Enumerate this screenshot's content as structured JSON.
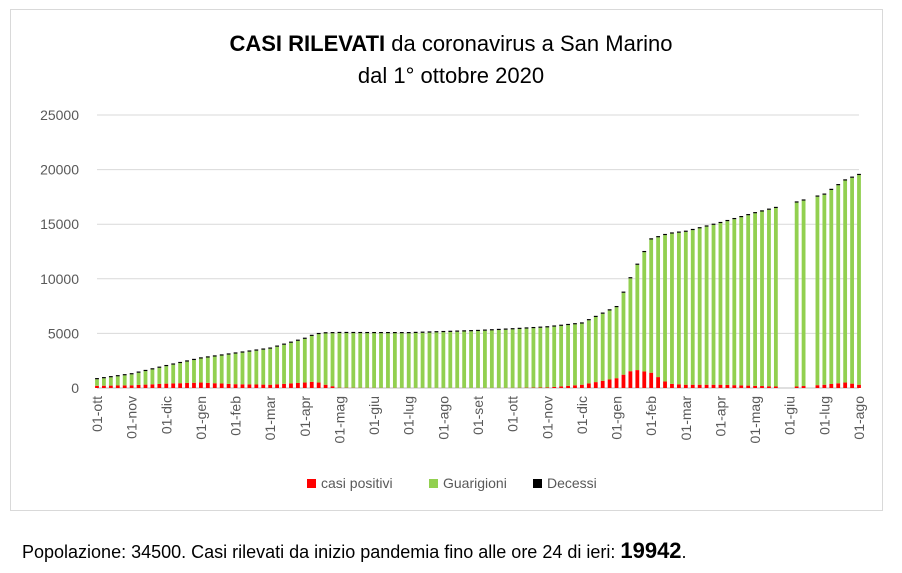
{
  "footer": {
    "prefix": "Popolazione: 34500. Casi rilevati da inizio pandemia fino alle ore 24 di ieri: ",
    "total": "19942",
    "suffix": "."
  },
  "colors": {
    "positivi": "#ff0000",
    "guarigioni": "#92d050",
    "decessi": "#000000",
    "gridline": "#d9d9d9",
    "text": "#595959"
  },
  "chart_data": {
    "type": "bar",
    "stacked": true,
    "title_bold": "CASI RILEVATI",
    "title_rest": " da coronavirus a San Marino",
    "subtitle": "dal 1° ottobre 2020",
    "ylim": [
      0,
      25000
    ],
    "y_ticks": [
      "25000",
      "20000",
      "15000",
      "10000",
      "5000",
      "0"
    ],
    "grid": true,
    "legend_position": "bottom",
    "x_tick_labels": [
      "01-ott",
      "01-nov",
      "01-dic",
      "01-gen",
      "01-feb",
      "01-mar",
      "01-apr",
      "01-mag",
      "01-giu",
      "01-lug",
      "01-ago",
      "01-set",
      "01-ott",
      "01-nov",
      "01-dic",
      "01-gen",
      "01-feb",
      "01-mar",
      "01-apr",
      "01-mag",
      "01-giu",
      "01-lug",
      "01-ago"
    ],
    "series": [
      {
        "name": "casi positivi",
        "color": "#ff0000",
        "points": [
          [
            0,
            200
          ],
          [
            1,
            250
          ],
          [
            2,
            400
          ],
          [
            3,
            500
          ],
          [
            4,
            350
          ],
          [
            5,
            300
          ],
          [
            6,
            500
          ],
          [
            6.3,
            600
          ],
          [
            6.6,
            300
          ],
          [
            7,
            30
          ],
          [
            8,
            20
          ],
          [
            9,
            15
          ],
          [
            10,
            15
          ],
          [
            11,
            15
          ],
          [
            12,
            20
          ],
          [
            13,
            50
          ],
          [
            14,
            300
          ],
          [
            15,
            900
          ],
          [
            15.5,
            1700
          ],
          [
            16,
            1400
          ],
          [
            16.5,
            400
          ],
          [
            17,
            300
          ],
          [
            18,
            300
          ],
          [
            19,
            200
          ],
          [
            20,
            100
          ],
          [
            21,
            300
          ],
          [
            21.6,
            500
          ],
          [
            22,
            300
          ]
        ]
      },
      {
        "name": "Guarigioni",
        "color": "#92d050",
        "points": [
          [
            0,
            600
          ],
          [
            1,
            1000
          ],
          [
            2,
            1600
          ],
          [
            3,
            2200
          ],
          [
            4,
            2800
          ],
          [
            5,
            3300
          ],
          [
            6,
            4000
          ],
          [
            6.3,
            4300
          ],
          [
            6.6,
            4700
          ],
          [
            7,
            5000
          ],
          [
            8,
            5000
          ],
          [
            9,
            5000
          ],
          [
            10,
            5100
          ],
          [
            11,
            5200
          ],
          [
            12,
            5350
          ],
          [
            13,
            5500
          ],
          [
            14,
            5600
          ],
          [
            15,
            6500
          ],
          [
            15.5,
            9000
          ],
          [
            16,
            12200
          ],
          [
            16.5,
            13700
          ],
          [
            17,
            14000
          ],
          [
            18,
            14800
          ],
          [
            19,
            15800
          ],
          [
            20,
            16700
          ],
          [
            21,
            17400
          ],
          [
            21.6,
            18500
          ],
          [
            22,
            19200
          ]
        ]
      },
      {
        "name": "Decessi",
        "color": "#000000",
        "points": [
          [
            0,
            20
          ],
          [
            1,
            20
          ],
          [
            2,
            25
          ],
          [
            3,
            30
          ],
          [
            4,
            35
          ],
          [
            5,
            40
          ],
          [
            6,
            50
          ],
          [
            7,
            55
          ],
          [
            8,
            55
          ],
          [
            9,
            55
          ],
          [
            10,
            55
          ],
          [
            11,
            55
          ],
          [
            12,
            55
          ],
          [
            13,
            55
          ],
          [
            14,
            60
          ],
          [
            15,
            70
          ],
          [
            16,
            80
          ],
          [
            17,
            85
          ],
          [
            18,
            90
          ],
          [
            19,
            90
          ],
          [
            20,
            90
          ],
          [
            21,
            90
          ],
          [
            22,
            90
          ]
        ]
      }
    ],
    "gaps": [
      [
        19.78,
        20.0
      ],
      [
        20.45,
        20.62
      ]
    ]
  }
}
